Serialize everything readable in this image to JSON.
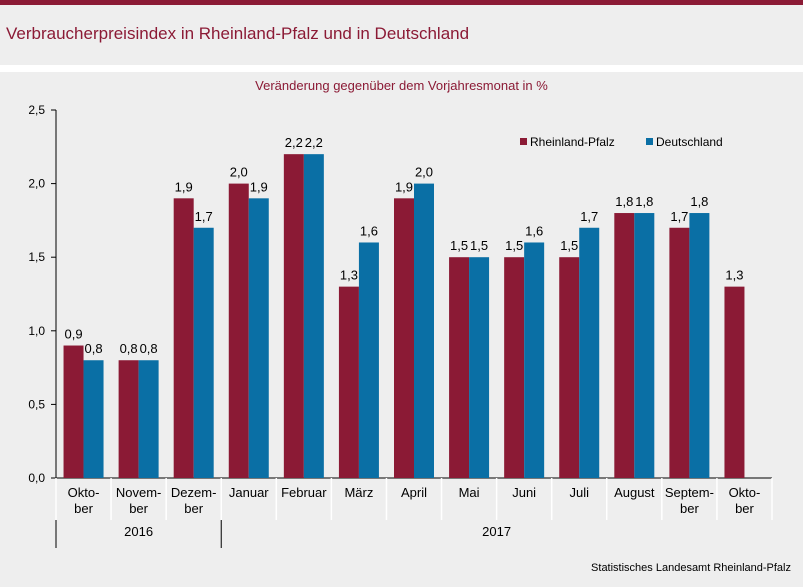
{
  "page": {
    "title": "Verbraucherpreisindex in Rheinland-Pfalz und in Deutschland",
    "source": "Statistisches Landesamt Rheinland-Pfalz"
  },
  "colors": {
    "accent": "#8b1a35",
    "rheinland_pfalz": "#8b1a35",
    "deutschland": "#0a6fa5"
  },
  "chart_data": {
    "type": "bar",
    "title": "Veränderung gegenüber dem Vorjahresmonat in %",
    "xlabel": "",
    "ylabel": "",
    "ylim": [
      0,
      2.5
    ],
    "yticks": [
      "0,0",
      "0,5",
      "1,0",
      "1,5",
      "2,0",
      "2,5"
    ],
    "grid": false,
    "legend_position": "top-right",
    "categories": [
      [
        "Okto-",
        "ber"
      ],
      [
        "Novem-",
        "ber"
      ],
      [
        "Dezem-",
        "ber"
      ],
      [
        "Januar"
      ],
      [
        "Februar"
      ],
      [
        "März"
      ],
      [
        "April"
      ],
      [
        "Mai"
      ],
      [
        "Juni"
      ],
      [
        "Juli"
      ],
      [
        "August"
      ],
      [
        "Septem-",
        "ber"
      ],
      [
        "Okto-",
        "ber"
      ]
    ],
    "groups": [
      {
        "label": "2016",
        "start": 0,
        "end": 2
      },
      {
        "label": "2017",
        "start": 3,
        "end": 12
      }
    ],
    "series": [
      {
        "name": "Rheinland-Pfalz",
        "values": [
          0.9,
          0.8,
          1.9,
          2.0,
          2.2,
          1.3,
          1.9,
          1.5,
          1.5,
          1.5,
          1.8,
          1.7,
          1.3
        ],
        "labels": [
          "0,9",
          "0,8",
          "1,9",
          "2,0",
          "2,2",
          "1,3",
          "1,9",
          "1,5",
          "1,5",
          "1,5",
          "1,8",
          "1,7",
          "1,3"
        ]
      },
      {
        "name": "Deutschland",
        "values": [
          0.8,
          0.8,
          1.7,
          1.9,
          2.2,
          1.6,
          2.0,
          1.5,
          1.6,
          1.7,
          1.8,
          1.8,
          null
        ],
        "labels": [
          "0,8",
          "0,8",
          "1,7",
          "1,9",
          "2,2",
          "1,6",
          "2,0",
          "1,5",
          "1,6",
          "1,7",
          "1,8",
          "1,8",
          ""
        ]
      }
    ]
  }
}
